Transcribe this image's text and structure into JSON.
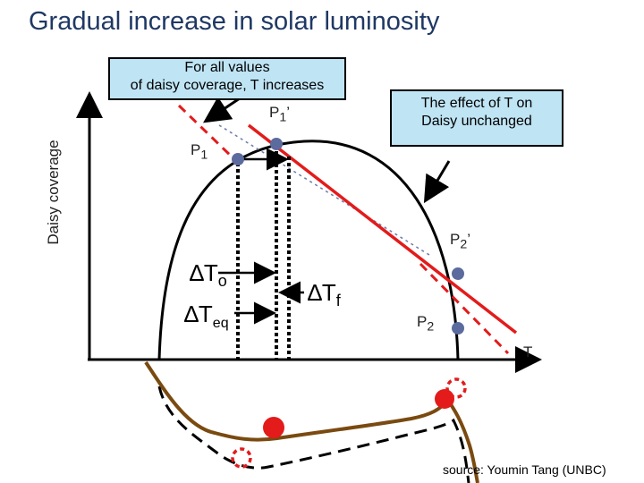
{
  "title": "Gradual increase in solar luminosity",
  "callout_left": [
    "For all values",
    "of daisy coverage, T increases"
  ],
  "callout_right": [
    "The effect of T on",
    "Daisy unchanged"
  ],
  "y_axis_label": "Daisy coverage",
  "x_axis_label": "T",
  "points": {
    "p1": {
      "base": "P",
      "sub": "1",
      "prime": ""
    },
    "p1_prime": {
      "base": "P",
      "sub": "1",
      "prime": "’"
    },
    "p2": {
      "base": "P",
      "sub": "2",
      "prime": ""
    },
    "p2_prime": {
      "base": "P",
      "sub": "2",
      "prime": "’"
    }
  },
  "deltas": {
    "t_o": {
      "symbol": "∆T",
      "sub": "o"
    },
    "t_eq": {
      "symbol": "∆T",
      "sub": "eq"
    },
    "t_f": {
      "symbol": "∆T",
      "sub": "f"
    }
  },
  "source": "source: Youmin Tang (UNBC)",
  "colors": {
    "red": "#e31b1b",
    "blue_point": "#5b6b9e",
    "callout_bg": "#bfe4f4",
    "title": "#1f3864",
    "brown": "#7a4a10"
  }
}
